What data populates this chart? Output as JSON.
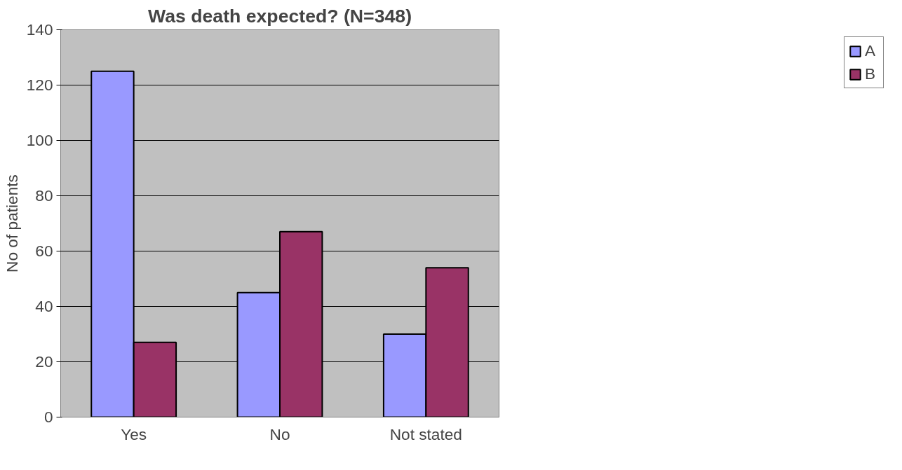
{
  "chart_data": {
    "type": "bar",
    "title": "Was death expected? (N=348)",
    "ylabel": "No of patients",
    "categories": [
      "Yes",
      "No",
      "Not stated"
    ],
    "series": [
      {
        "name": "A",
        "color": "#9999ff",
        "values": [
          125,
          45,
          30
        ]
      },
      {
        "name": "B",
        "color": "#993366",
        "values": [
          27,
          67,
          54
        ]
      }
    ],
    "ylim": [
      0,
      140
    ],
    "yticks": [
      0,
      20,
      40,
      60,
      80,
      100,
      120,
      140
    ],
    "grid": "y",
    "legend": "right"
  }
}
